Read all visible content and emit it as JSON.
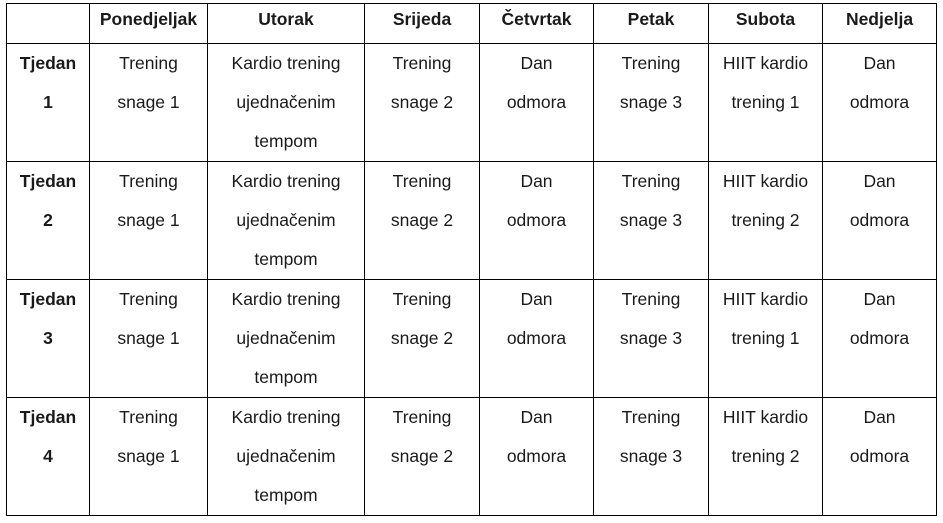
{
  "table": {
    "headers": [
      "",
      "Ponedjeljak",
      "Utorak",
      "Srijeda",
      "Četvrtak",
      "Petak",
      "Subota",
      "Nedjelja"
    ],
    "rows": [
      {
        "week": [
          "Tjedan",
          "1"
        ],
        "cells": [
          [
            "Trening",
            "snage 1"
          ],
          [
            "Kardio trening",
            "ujednačenim",
            "tempom"
          ],
          [
            "Trening",
            "snage 2"
          ],
          [
            "Dan",
            "odmora"
          ],
          [
            "Trening",
            "snage 3"
          ],
          [
            "HIIT kardio",
            "trening 1"
          ],
          [
            "Dan",
            "odmora"
          ]
        ]
      },
      {
        "week": [
          "Tjedan",
          "2"
        ],
        "cells": [
          [
            "Trening",
            "snage 1"
          ],
          [
            "Kardio trening",
            "ujednačenim",
            "tempom"
          ],
          [
            "Trening",
            "snage 2"
          ],
          [
            "Dan",
            "odmora"
          ],
          [
            "Trening",
            "snage 3"
          ],
          [
            "HIIT kardio",
            "trening 2"
          ],
          [
            "Dan",
            "odmora"
          ]
        ]
      },
      {
        "week": [
          "Tjedan",
          "3"
        ],
        "cells": [
          [
            "Trening",
            "snage 1"
          ],
          [
            "Kardio trening",
            "ujednačenim",
            "tempom"
          ],
          [
            "Trening",
            "snage 2"
          ],
          [
            "Dan",
            "odmora"
          ],
          [
            "Trening",
            "snage 3"
          ],
          [
            "HIIT kardio",
            "trening 1"
          ],
          [
            "Dan",
            "odmora"
          ]
        ]
      },
      {
        "week": [
          "Tjedan",
          "4"
        ],
        "cells": [
          [
            "Trening",
            "snage 1"
          ],
          [
            "Kardio trening",
            "ujednačenim",
            "tempom"
          ],
          [
            "Trening",
            "snage 2"
          ],
          [
            "Dan",
            "odmora"
          ],
          [
            "Trening",
            "snage 3"
          ],
          [
            "HIIT kardio",
            "trening 2"
          ],
          [
            "Dan",
            "odmora"
          ]
        ]
      }
    ]
  }
}
